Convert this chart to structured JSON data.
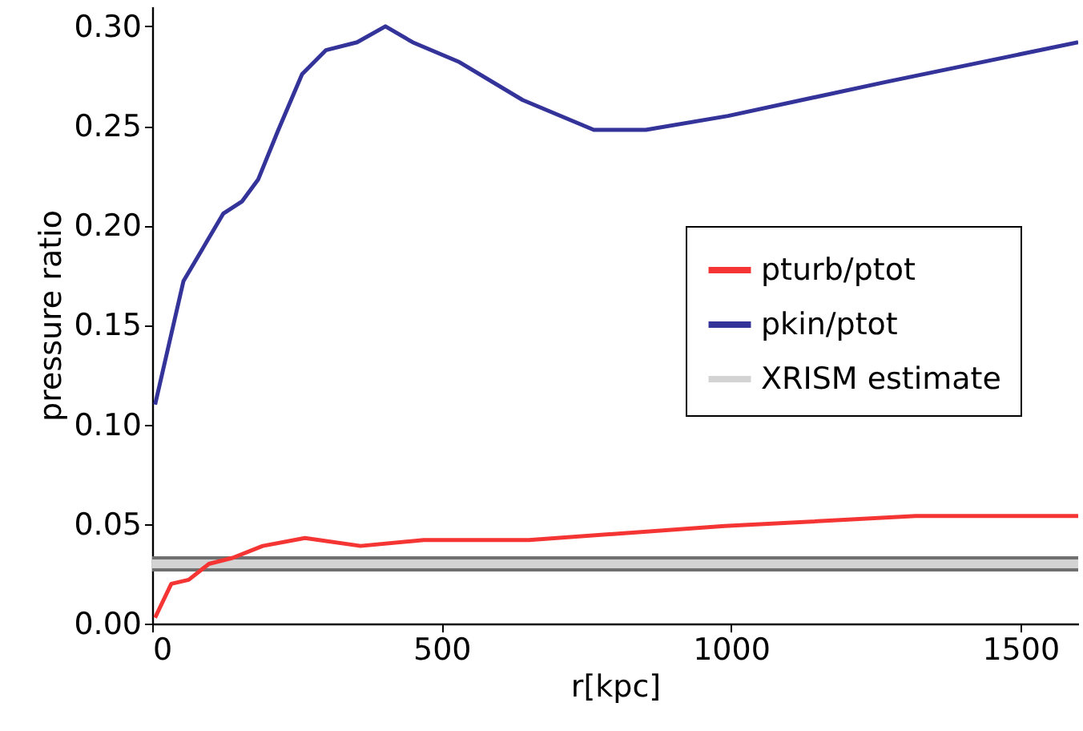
{
  "chart_data": {
    "type": "line",
    "xlabel": "r[kpc]",
    "ylabel": "pressure ratio",
    "xlim": [
      0,
      1600
    ],
    "ylim": [
      0,
      0.31
    ],
    "xticks": [
      0,
      500,
      1000,
      1500
    ],
    "yticks": [
      {
        "value": 0,
        "label": "0.00"
      },
      0.05,
      {
        "value": 0.1,
        "label": "0.10"
      },
      0.15,
      {
        "value": 0.2,
        "label": "0.20"
      },
      0.25,
      {
        "value": 0.3,
        "label": "0.30"
      }
    ],
    "grid": false,
    "legend": "right",
    "marker": "none",
    "line_style": "solid",
    "series": [
      {
        "name": "pturb/ptot",
        "color": "#f53434",
        "x": [
          5,
          33,
          63,
          98,
          139,
          191,
          264,
          360,
          469,
          651,
          989,
          1319,
          1600
        ],
        "values": [
          0.003,
          0.02,
          0.022,
          0.03,
          0.033,
          0.039,
          0.043,
          0.039,
          0.042,
          0.042,
          0.049,
          0.054,
          0.054
        ]
      },
      {
        "name": "pkin/ptot",
        "color": "#33339a",
        "x": [
          5,
          54,
          123,
          155,
          183,
          218,
          259,
          300,
          354,
          403,
          450,
          531,
          640,
          763,
          853,
          995,
          1267,
          1600
        ],
        "values": [
          0.11,
          0.172,
          0.206,
          0.212,
          0.223,
          0.248,
          0.276,
          0.288,
          0.292,
          0.3,
          0.292,
          0.282,
          0.263,
          0.248,
          0.248,
          0.255,
          0.272,
          0.292
        ]
      }
    ],
    "bands": [
      {
        "axis": "y",
        "from": 0.027,
        "to": 0.033,
        "label": "XRISM estimate",
        "color": "#d3d3d3"
      }
    ],
    "ref_lines": [
      {
        "axis": "y",
        "value": 0.027,
        "color": "#707070"
      },
      {
        "axis": "y",
        "value": 0.033,
        "color": "#707070"
      }
    ]
  }
}
